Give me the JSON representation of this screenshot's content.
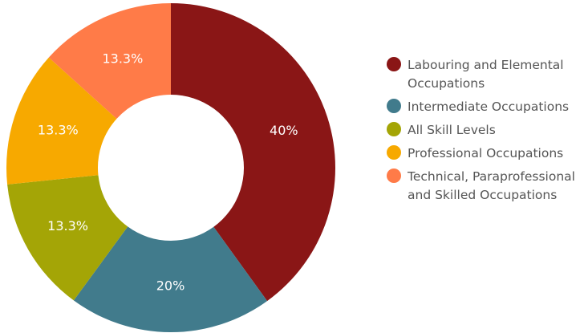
{
  "chart_data": {
    "type": "donut",
    "categories": [
      "Labouring and Elemental Occupations",
      "Intermediate Occupations",
      "All Skill Levels",
      "Professional Occupations",
      "Technical, Paraprofessional and Skilled Occupations"
    ],
    "values": [
      40,
      20,
      13.3,
      13.3,
      13.3
    ],
    "value_labels": [
      "40%",
      "20%",
      "13.3%",
      "13.3%",
      "13.3%"
    ],
    "colors": [
      "#8a1616",
      "#417b8c",
      "#a4a506",
      "#f7a900",
      "#ff7b48"
    ],
    "legend": "right"
  }
}
